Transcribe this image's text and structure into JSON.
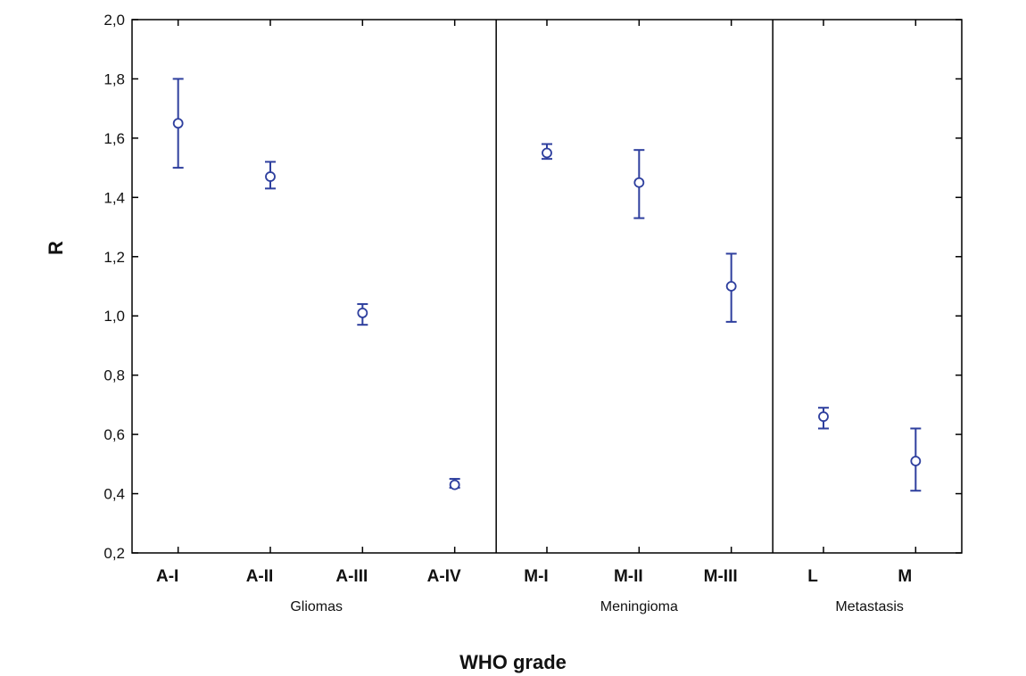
{
  "chart_data": {
    "type": "scatter",
    "xlabel": "WHO grade",
    "ylabel": "R",
    "ylim": [
      0.2,
      2.0
    ],
    "yticks": [
      "0,2",
      "0,4",
      "0,6",
      "0,8",
      "1,0",
      "1,2",
      "1,4",
      "1,6",
      "1,8",
      "2,0"
    ],
    "groups": [
      {
        "name": "Gliomas",
        "categories": [
          "A-I",
          "A-II",
          "A-III",
          "A-IV"
        ]
      },
      {
        "name": "Meningioma",
        "categories": [
          "M-I",
          "M-II",
          "M-III"
        ]
      },
      {
        "name": "Metastasis",
        "categories": [
          "L",
          "M"
        ]
      }
    ],
    "categories": [
      "A-I",
      "A-II",
      "A-III",
      "A-IV",
      "M-I",
      "M-II",
      "M-III",
      "L",
      "M"
    ],
    "points": [
      {
        "category": "A-I",
        "mean": 1.65,
        "lower": 1.5,
        "upper": 1.8
      },
      {
        "category": "A-II",
        "mean": 1.47,
        "lower": 1.43,
        "upper": 1.52
      },
      {
        "category": "A-III",
        "mean": 1.01,
        "lower": 0.97,
        "upper": 1.04
      },
      {
        "category": "A-IV",
        "mean": 0.43,
        "lower": 0.42,
        "upper": 0.45
      },
      {
        "category": "M-I",
        "mean": 1.55,
        "lower": 1.53,
        "upper": 1.58
      },
      {
        "category": "M-II",
        "mean": 1.45,
        "lower": 1.33,
        "upper": 1.56
      },
      {
        "category": "M-III",
        "mean": 1.1,
        "lower": 0.98,
        "upper": 1.21
      },
      {
        "category": "L",
        "mean": 0.66,
        "lower": 0.62,
        "upper": 0.69
      },
      {
        "category": "M",
        "mean": 0.51,
        "lower": 0.41,
        "upper": 0.62
      }
    ],
    "grid": false,
    "marker_color": "#2e3f9e"
  }
}
